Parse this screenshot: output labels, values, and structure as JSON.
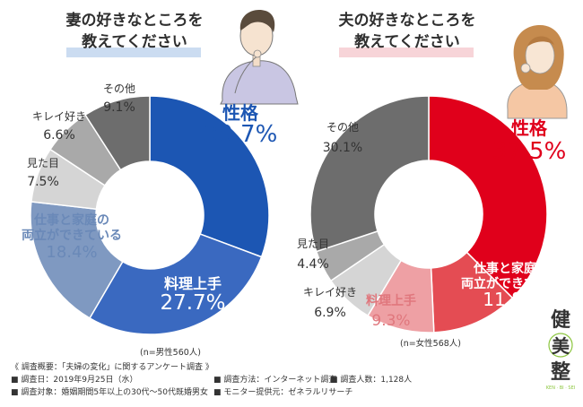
{
  "chart_data": [
    {
      "type": "pie",
      "title": "妻の好きなところを教えてください",
      "title_lines": [
        "妻の好きなところを",
        "教えてください"
      ],
      "sample_note": "(n=男性560人)",
      "slices": [
        {
          "label": "性格",
          "label_lines": [
            "性格"
          ],
          "value": 30.7,
          "value_text": "30.7%",
          "color": "#1c56b3"
        },
        {
          "label": "料理上手",
          "label_lines": [
            "料理上手"
          ],
          "value": 27.7,
          "value_text": "27.7%",
          "color": "#3a69c0"
        },
        {
          "label": "仕事と家庭の両立ができている",
          "label_lines": [
            "仕事と家庭の",
            "両立ができている"
          ],
          "value": 18.4,
          "value_text": "18.4%",
          "color": "#7f99c1"
        },
        {
          "label": "見た目",
          "label_lines": [
            "見た目"
          ],
          "value": 7.5,
          "value_text": "7.5%",
          "color": "#d5d5d5"
        },
        {
          "label": "キレイ好き",
          "label_lines": [
            "キレイ好き"
          ],
          "value": 6.6,
          "value_text": "6.6%",
          "color": "#a9a9a9"
        },
        {
          "label": "その他",
          "label_lines": [
            "その他"
          ],
          "value": 9.1,
          "value_text": "9.1%",
          "color": "#6d6d6d"
        }
      ]
    },
    {
      "type": "pie",
      "title": "夫の好きなところを教えてください",
      "title_lines": [
        "夫の好きなところを",
        "教えてください"
      ],
      "sample_note": "(n=女性568人)",
      "slices": [
        {
          "label": "性格",
          "label_lines": [
            "性格"
          ],
          "value": 37.5,
          "value_text": "37.5%",
          "color": "#e0001b"
        },
        {
          "label": "仕事と家庭の両立ができている",
          "label_lines": [
            "仕事と家庭の",
            "両立ができている"
          ],
          "value": 11.8,
          "value_text": "11.8%",
          "color": "#e44c53"
        },
        {
          "label": "料理上手",
          "label_lines": [
            "料理上手"
          ],
          "value": 9.3,
          "value_text": "9.3%",
          "color": "#eea0a4"
        },
        {
          "label": "キレイ好き",
          "label_lines": [
            "キレイ好き"
          ],
          "value": 6.9,
          "value_text": "6.9%",
          "color": "#d5d5d5"
        },
        {
          "label": "見た目",
          "label_lines": [
            "見た目"
          ],
          "value": 4.4,
          "value_text": "4.4%",
          "color": "#a9a9a9"
        },
        {
          "label": "その他",
          "label_lines": [
            "その他"
          ],
          "value": 30.1,
          "value_text": "30.1%",
          "color": "#6d6d6d"
        }
      ]
    }
  ],
  "footer": {
    "heading": "《 調査概要：「夫婦の変化」に関するアンケート調査 》",
    "items": [
      "■ 調査日：2019年9月25日（水）",
      "■ 調査対象：婚姻期間5年以上の30代〜50代既婚男女",
      "■ 調査方法：インターネット調査",
      "■ 調査人数：1,128人",
      "■ モニター提供元：ゼネラルリサーチ"
    ]
  },
  "logo": {
    "chars": [
      "健",
      "美",
      "整"
    ],
    "tagline": "KEN · BI · SEI",
    "colors": {
      "main": "#333333",
      "accent": "#8cc63f"
    }
  },
  "colors": {
    "title_underline_left": "#a9c4e8",
    "title_underline_right": "#f2b8be"
  }
}
